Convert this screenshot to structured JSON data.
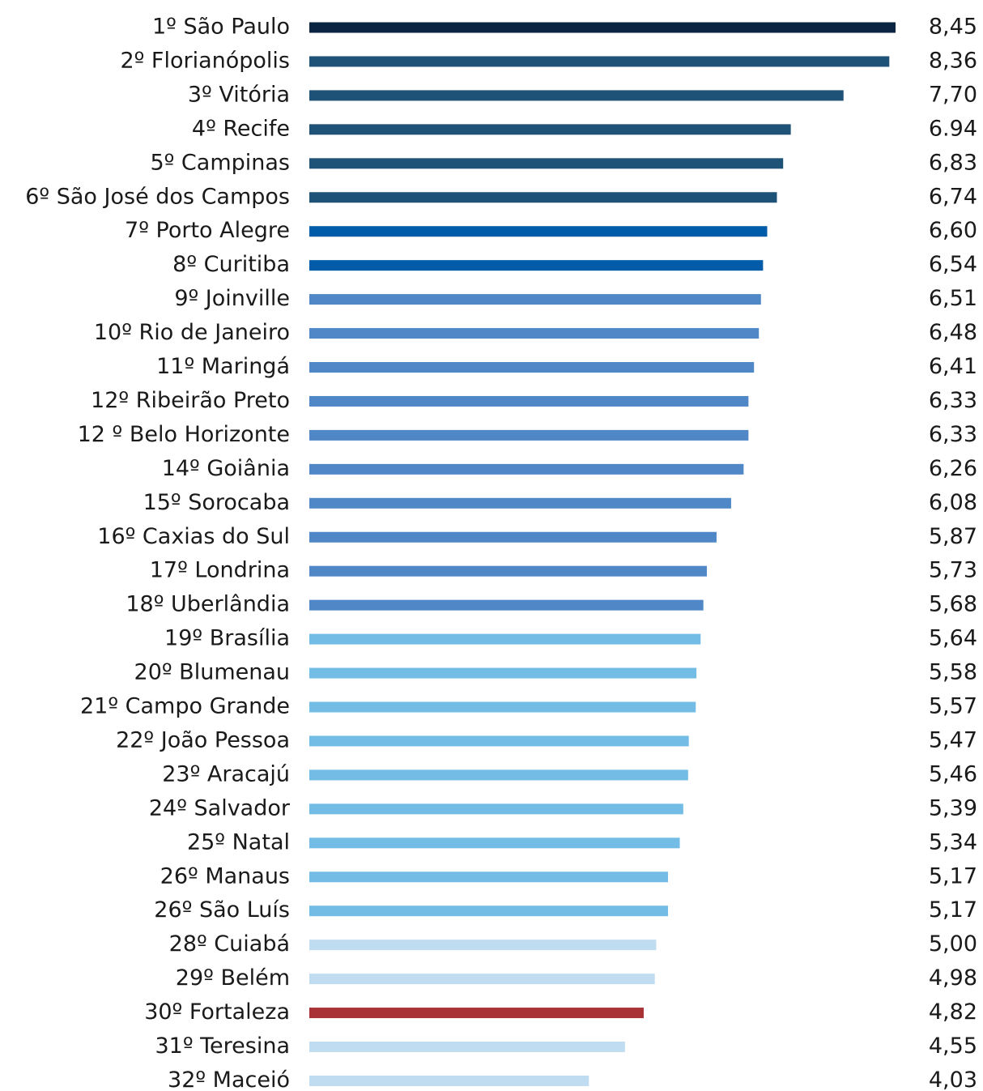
{
  "chart_data": {
    "type": "hbar",
    "categories": [
      "1º São Paulo",
      "2º Florianópolis",
      "3º Vitória",
      "4º Recife",
      "5º Campinas",
      "6º São José dos Campos",
      "7º Porto Alegre",
      "8º Curitiba",
      "9º Joinville",
      "10º Rio de Janeiro",
      "11º Maringá",
      "12º Ribeirão Preto",
      "12 º Belo Horizonte",
      "14º Goiânia",
      "15º Sorocaba",
      "16º Caxias do Sul",
      "17º Londrina",
      "18º Uberlândia",
      "19º Brasília",
      "20º Blumenau",
      "21º Campo Grande",
      "22º João Pessoa",
      "23º Aracajú",
      "24º Salvador",
      "25º Natal",
      "26º Manaus",
      "26º São Luís",
      "28º Cuiabá",
      "29º Belém",
      "30º Fortaleza",
      "31º Teresina",
      "32º Maceió"
    ],
    "values": [
      8.45,
      8.36,
      7.7,
      6.94,
      6.83,
      6.74,
      6.6,
      6.54,
      6.51,
      6.48,
      6.41,
      6.33,
      6.33,
      6.26,
      6.08,
      5.87,
      5.73,
      5.68,
      5.64,
      5.58,
      5.57,
      5.47,
      5.46,
      5.39,
      5.34,
      5.17,
      5.17,
      5.0,
      4.98,
      4.82,
      4.55,
      4.03
    ],
    "value_labels": [
      "8,45",
      "8,36",
      "7,70",
      "6.94",
      "6,83",
      "6,74",
      "6,60",
      "6,54",
      "6,51",
      "6,48",
      "6,41",
      "6,33",
      "6,33",
      "6,26",
      "6,08",
      "5,87",
      "5,73",
      "5,68",
      "5,64",
      "5,58",
      "5,57",
      "5,47",
      "5,46",
      "5,39",
      "5,34",
      "5,17",
      "5,17",
      "5,00",
      "4,98",
      "4,82",
      "4,55",
      "4,03"
    ],
    "colors": [
      "#0b2441",
      "#1f5277",
      "#1f5277",
      "#1f5277",
      "#1f5277",
      "#1f5277",
      "#005ca8",
      "#005ca8",
      "#4f87c7",
      "#4f87c7",
      "#4f87c7",
      "#4f87c7",
      "#4f87c7",
      "#4f87c7",
      "#4f87c7",
      "#4f87c7",
      "#4f87c7",
      "#4f87c7",
      "#72bce6",
      "#72bce6",
      "#72bce6",
      "#72bce6",
      "#72bce6",
      "#72bce6",
      "#72bce6",
      "#72bce6",
      "#72bce6",
      "#c0dcf0",
      "#c0dcf0",
      "#a83236",
      "#c0dcf0",
      "#c0dcf0"
    ]
  }
}
